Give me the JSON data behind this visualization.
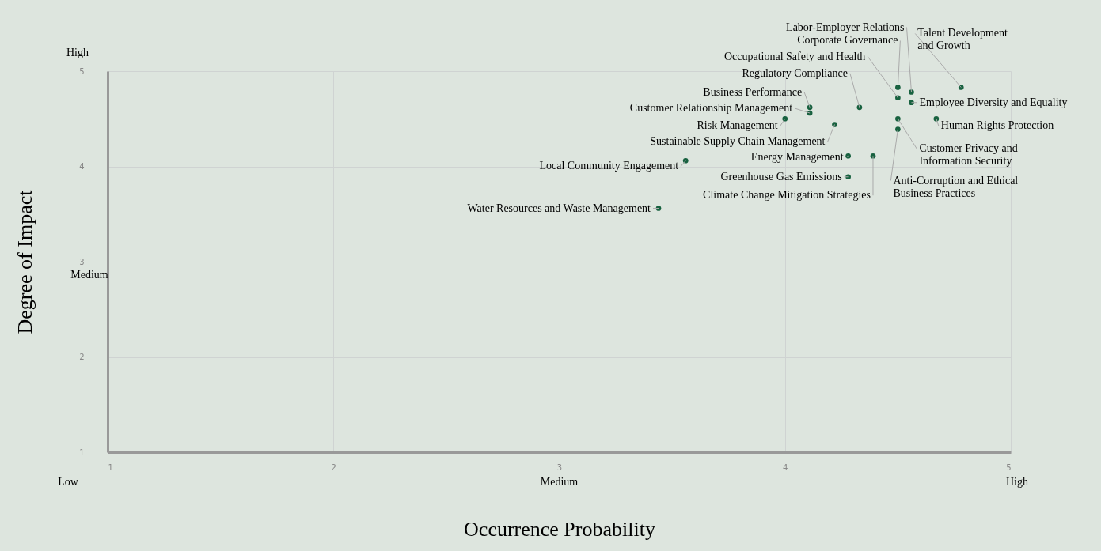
{
  "chart_data": {
    "type": "scatter",
    "xlabel": "Occurrence Probability",
    "ylabel": "Degree of Impact",
    "xlim": [
      1,
      5
    ],
    "ylim": [
      1,
      5
    ],
    "xticks": [
      1,
      2,
      3,
      4,
      5
    ],
    "yticks": [
      1,
      2,
      3,
      4,
      5
    ],
    "grid": true,
    "marker": "circle",
    "legend": false,
    "annotations": [
      "Low",
      "Medium",
      "High",
      "Medium",
      "High"
    ],
    "series": [
      {
        "name": "Labor-Employer Relations",
        "color": "#17613f",
        "x": [
          4.56
        ],
        "values": [
          4.78
        ]
      },
      {
        "name": "Talent Development\nand Growth",
        "color": "#17613f",
        "x": [
          4.78
        ],
        "values": [
          4.83
        ]
      },
      {
        "name": "Corporate Governance",
        "color": "#17613f",
        "x": [
          4.5
        ],
        "values": [
          4.83
        ]
      },
      {
        "name": "Occupational Safety and Health",
        "color": "#17613f",
        "x": [
          4.5
        ],
        "values": [
          4.72
        ]
      },
      {
        "name": "Employee Diversity and Equality",
        "color": "#17613f",
        "x": [
          4.56
        ],
        "values": [
          4.67
        ]
      },
      {
        "name": "Regulatory Compliance",
        "color": "#17613f",
        "x": [
          4.33
        ],
        "values": [
          4.62
        ]
      },
      {
        "name": "Business Performance",
        "color": "#17613f",
        "x": [
          4.11
        ],
        "values": [
          4.62
        ]
      },
      {
        "name": "Customer Relationship Management",
        "color": "#17613f",
        "x": [
          4.11
        ],
        "values": [
          4.56
        ]
      },
      {
        "name": "Risk Management",
        "color": "#17613f",
        "x": [
          4.0
        ],
        "values": [
          4.5
        ]
      },
      {
        "name": "Human Rights Protection",
        "color": "#17613f",
        "x": [
          4.67
        ],
        "values": [
          4.5
        ]
      },
      {
        "name": "Customer Privacy and\nInformation Security",
        "color": "#17613f",
        "x": [
          4.5
        ],
        "values": [
          4.5
        ]
      },
      {
        "name": "Sustainable Supply Chain Management",
        "color": "#17613f",
        "x": [
          4.22
        ],
        "values": [
          4.44
        ]
      },
      {
        "name": "Anti-Corruption and Ethical\nBusiness Practices",
        "color": "#17613f",
        "x": [
          4.5
        ],
        "values": [
          4.39
        ]
      },
      {
        "name": "Energy Management",
        "color": "#17613f",
        "x": [
          4.28
        ],
        "values": [
          4.11
        ]
      },
      {
        "name": "Climate Change Mitigation Strategies",
        "color": "#17613f",
        "x": [
          4.39
        ],
        "values": [
          4.11
        ]
      },
      {
        "name": "Greenhouse Gas Emissions",
        "color": "#17613f",
        "x": [
          4.28
        ],
        "values": [
          3.89
        ]
      },
      {
        "name": "Local Community Engagement",
        "color": "#17613f",
        "x": [
          3.56
        ],
        "values": [
          4.06
        ]
      },
      {
        "name": "Water Resources and Waste Management",
        "color": "#17613f",
        "x": [
          3.44
        ],
        "values": [
          3.56
        ]
      }
    ]
  }
}
